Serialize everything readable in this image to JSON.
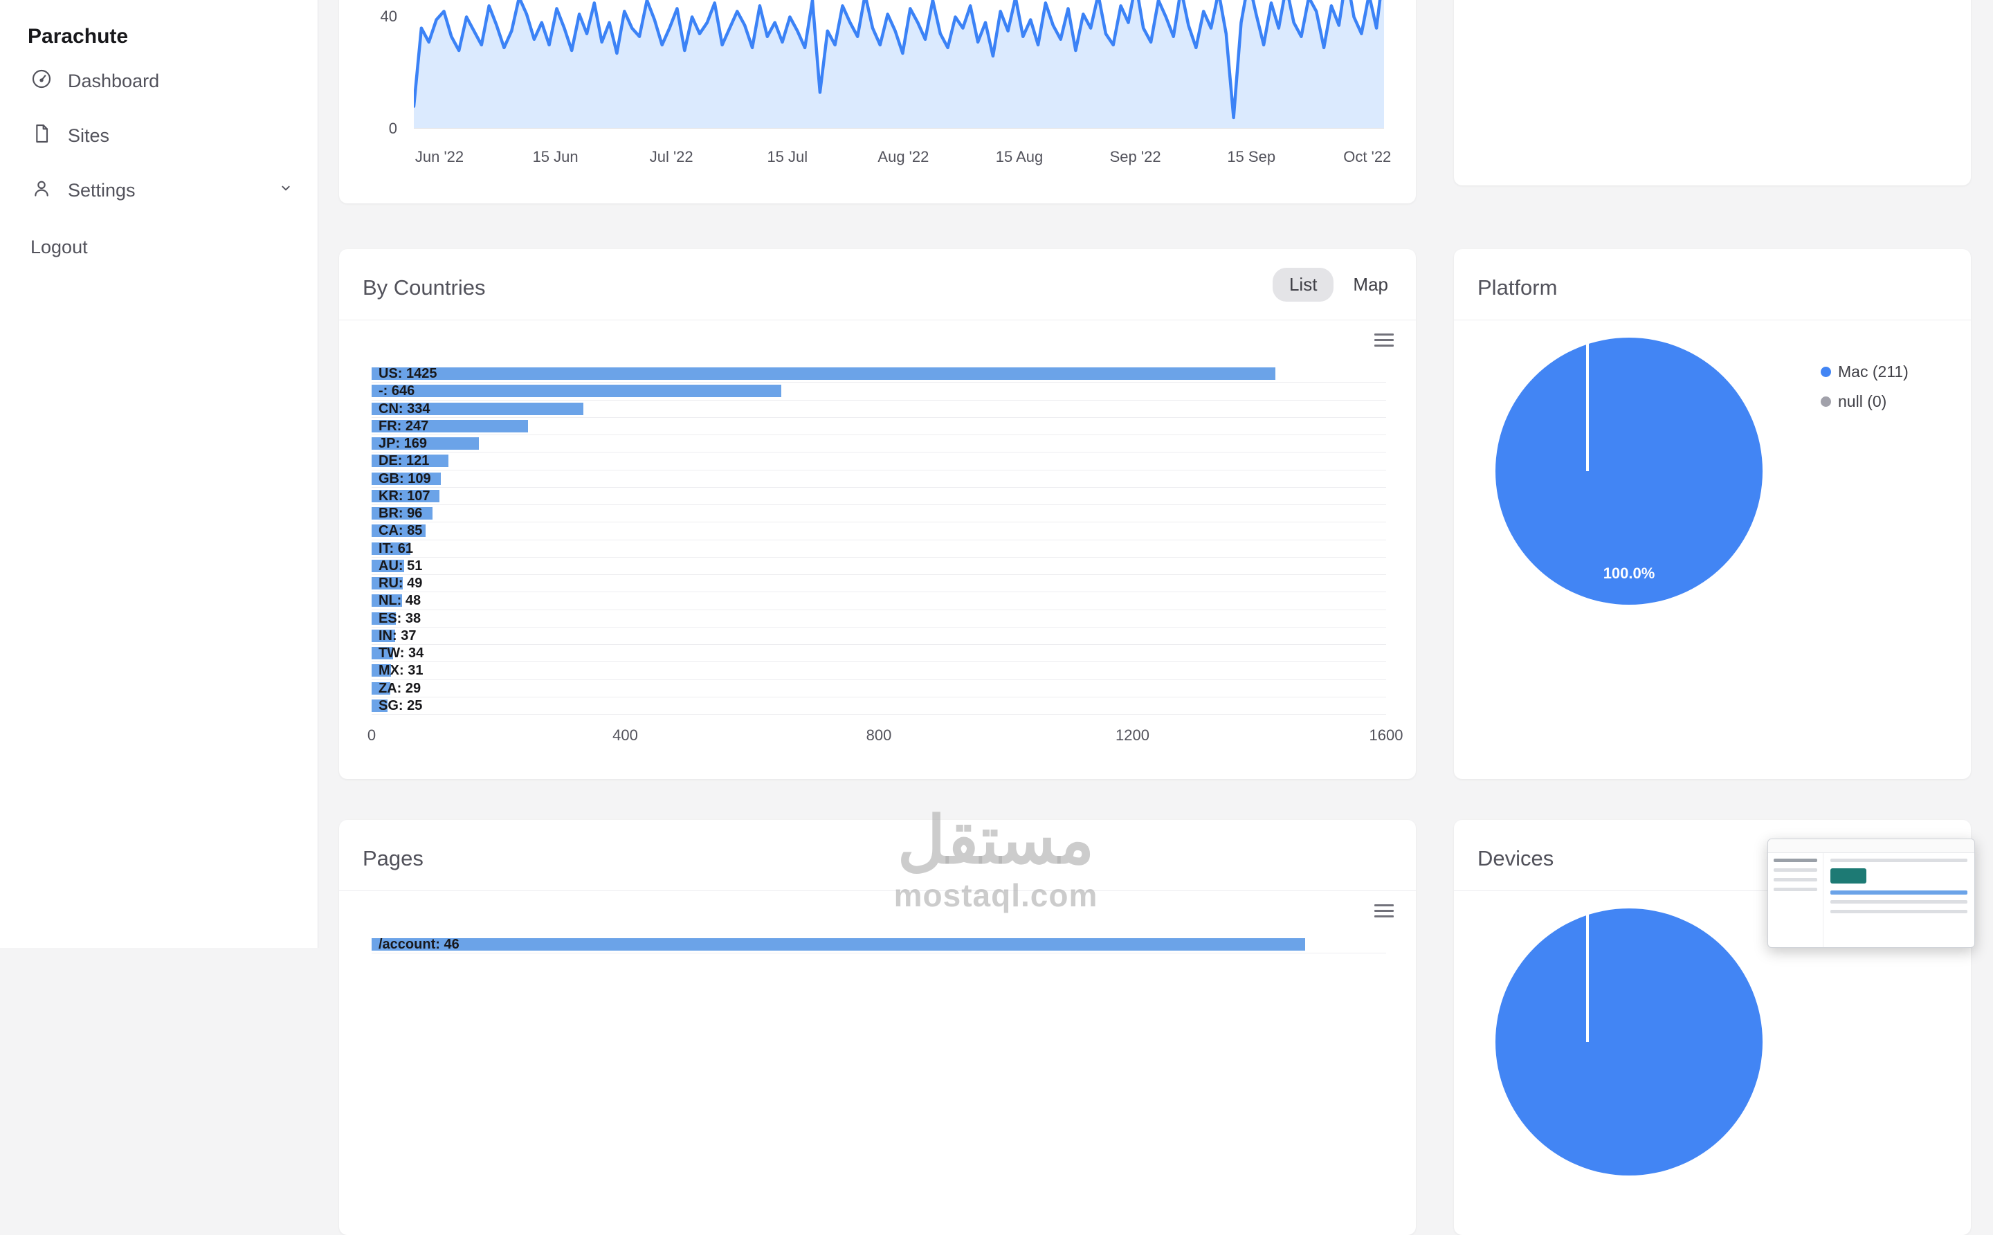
{
  "brand": "Parachute",
  "sidebar": {
    "items": [
      {
        "label": "Dashboard"
      },
      {
        "label": "Sites"
      },
      {
        "label": "Settings"
      }
    ],
    "logout_label": "Logout"
  },
  "cards": {
    "countries": {
      "title": "By Countries",
      "toggle_list": "List",
      "toggle_map": "Map",
      "selected_view": "List"
    },
    "platform": {
      "title": "Platform"
    },
    "pages": {
      "title": "Pages"
    },
    "devices": {
      "title": "Devices"
    }
  },
  "watermark": {
    "arabic": "مستقل",
    "latin": "mostaql.com"
  },
  "colors": {
    "line_blue": "#3b82f6",
    "area_blue": "#dbeafe",
    "bar_blue": "#6ba3e8",
    "pie_blue": "#4285f4",
    "null_gray": "#a1a1aa"
  },
  "chart_data": [
    {
      "type": "area",
      "name": "visitors-over-time",
      "x_ticks": [
        "Jun '22",
        "15 Jun",
        "Jul '22",
        "15 Jul",
        "Aug '22",
        "15 Aug",
        "Sep '22",
        "15 Sep",
        "Oct '22"
      ],
      "y_ticks": [
        0,
        40
      ],
      "ylim": [
        0,
        46
      ],
      "grid": false,
      "values": [
        8,
        36,
        31,
        39,
        42,
        33,
        28,
        40,
        35,
        30,
        44,
        37,
        29,
        35,
        47,
        41,
        32,
        38,
        30,
        43,
        36,
        28,
        41,
        34,
        45,
        31,
        38,
        27,
        42,
        36,
        33,
        46,
        39,
        30,
        36,
        43,
        28,
        40,
        34,
        38,
        45,
        30,
        36,
        42,
        37,
        29,
        44,
        33,
        38,
        31,
        40,
        35,
        29,
        46,
        13,
        35,
        30,
        44,
        38,
        33,
        48,
        36,
        30,
        41,
        35,
        27,
        43,
        38,
        32,
        46,
        34,
        29,
        40,
        36,
        44,
        31,
        38,
        26,
        42,
        35,
        47,
        33,
        39,
        30,
        45,
        37,
        32,
        43,
        28,
        41,
        36,
        48,
        34,
        30,
        44,
        38,
        52,
        36,
        31,
        46,
        40,
        33,
        50,
        37,
        29,
        42,
        36,
        49,
        34,
        4,
        38,
        53,
        41,
        30,
        45,
        36,
        51,
        38,
        33,
        47,
        42,
        29,
        44,
        37,
        55,
        40,
        34,
        48,
        36,
        58
      ]
    },
    {
      "type": "bar",
      "name": "by-countries",
      "orientation": "horizontal",
      "categories": [
        "US",
        "-",
        "CN",
        "FR",
        "JP",
        "DE",
        "GB",
        "KR",
        "BR",
        "CA",
        "IT",
        "AU",
        "RU",
        "NL",
        "ES",
        "IN",
        "TW",
        "MX",
        "ZA",
        "SG"
      ],
      "values": [
        1425,
        646,
        334,
        247,
        169,
        121,
        109,
        107,
        96,
        85,
        61,
        51,
        49,
        48,
        38,
        37,
        34,
        31,
        29,
        25
      ],
      "x_ticks": [
        0,
        400,
        800,
        1200,
        1600
      ],
      "xlim": [
        0,
        1600
      ]
    },
    {
      "type": "pie",
      "name": "platform",
      "labels": [
        "Mac (211)",
        "null (0)"
      ],
      "values": [
        211,
        0
      ],
      "center_label": "100.0%",
      "legend_position": "right"
    },
    {
      "type": "bar",
      "name": "pages",
      "orientation": "horizontal",
      "categories": [
        "/account"
      ],
      "values": [
        46
      ],
      "xlim": [
        0,
        50
      ]
    },
    {
      "type": "pie",
      "name": "devices",
      "labels": [],
      "values": [
        100
      ]
    }
  ]
}
